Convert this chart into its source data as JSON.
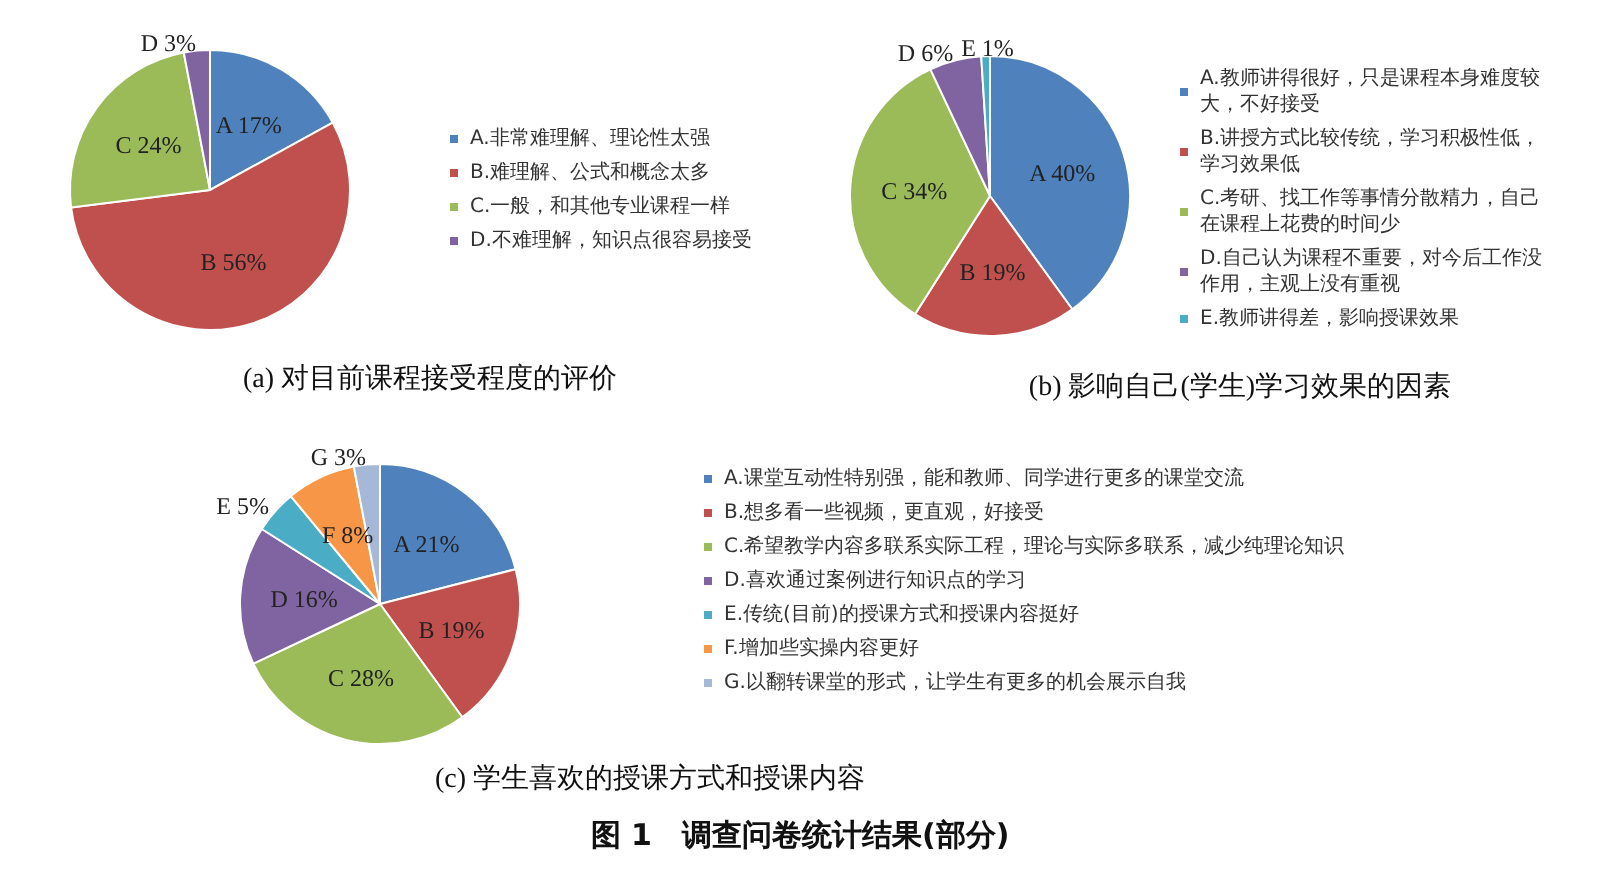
{
  "chart_data": [
    {
      "type": "pie",
      "title": "(a) 对目前课程接受程度的评价",
      "legend": "right",
      "categories": [
        "A.非常难理解、理论性太强",
        "B.难理解、公式和概念太多",
        "C.一般，和其他专业课程一样",
        "D.不难理解，知识点很容易接受"
      ],
      "values": [
        17,
        56,
        24,
        3
      ],
      "colors": [
        "#4f81bd",
        "#c0504d",
        "#9bbb59",
        "#8064a2"
      ],
      "value_labels": [
        "A 17%",
        "B 56%",
        "C 24%",
        "D 3%"
      ]
    },
    {
      "type": "pie",
      "title": "(b) 影响自己(学生)学习效果的因素",
      "legend": "right",
      "categories": [
        "A.教师讲得很好，只是课程本身难度较大，不好接受",
        "B.讲授方式比较传统，学习积极性低，学习效果低",
        "C.考研、找工作等事情分散精力，自己在课程上花费的时间少",
        "D.自己认为课程不重要，对今后工作没作用，主观上没有重视",
        "E.教师讲得差，影响授课效果"
      ],
      "values": [
        40,
        19,
        34,
        6,
        1
      ],
      "colors": [
        "#4f81bd",
        "#c0504d",
        "#9bbb59",
        "#8064a2",
        "#4bacc6"
      ],
      "value_labels": [
        "A 40%",
        "B 19%",
        "C 34%",
        "D 6%",
        "E 1%"
      ]
    },
    {
      "type": "pie",
      "title": "(c) 学生喜欢的授课方式和授课内容",
      "legend": "right",
      "categories": [
        "A.课堂互动性特别强，能和教师、同学进行更多的课堂交流",
        "B.想多看一些视频，更直观，好接受",
        "C.希望教学内容多联系实际工程，理论与实际多联系，减少纯理论知识",
        "D.喜欢通过案例进行知识点的学习",
        "E.传统(目前)的授课方式和授课内容挺好",
        "F.增加些实操内容更好",
        "G.以翻转课堂的形式，让学生有更多的机会展示自我"
      ],
      "values": [
        21,
        19,
        28,
        16,
        5,
        8,
        3
      ],
      "colors": [
        "#4f81bd",
        "#c0504d",
        "#9bbb59",
        "#8064a2",
        "#4bacc6",
        "#f79646",
        "#a5b8d8"
      ],
      "value_labels": [
        "A 21%",
        "B 19%",
        "C 28%",
        "D 16%",
        "E 5%",
        "F 8%",
        "G 3%"
      ],
      "annotations": [
        "图 1　调查问卷统计结果(部分)"
      ]
    }
  ]
}
